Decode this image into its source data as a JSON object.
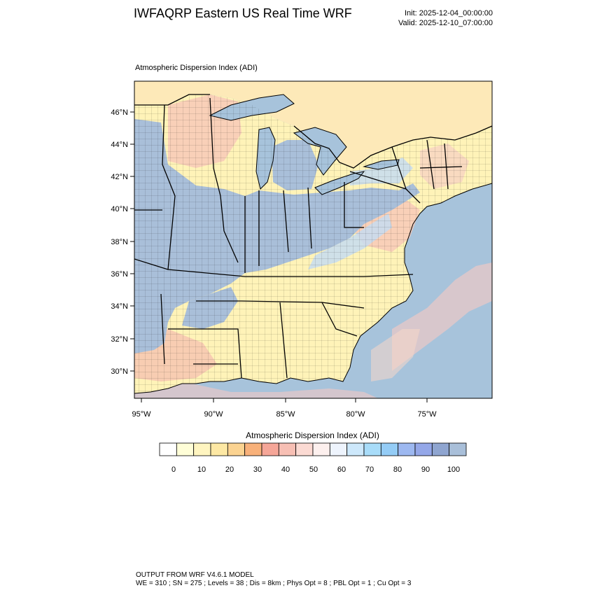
{
  "header": {
    "title": "IWFAQRP Eastern US Real Time WRF",
    "init": "Init: 2025-12-04_00:00:00",
    "valid": "Valid: 2025-12-10_07:00:00"
  },
  "panel": {
    "title": "Atmospheric Dispersion Index   (ADI)"
  },
  "map": {
    "lat_ticks": [
      "46°N",
      "44°N",
      "42°N",
      "40°N",
      "38°N",
      "36°N",
      "34°N",
      "32°N",
      "30°N"
    ],
    "lon_ticks": [
      "95°W",
      "90°W",
      "85°W",
      "80°W",
      "75°W"
    ],
    "colors": {
      "water": "#a7c3db",
      "high_adi": "#a9bfd9",
      "low_adi": "#fff3b8",
      "mid_adi": "#f8c9b7",
      "light_blue": "#c7dcf0",
      "canada": "#fde9b8"
    }
  },
  "colorbar": {
    "title": "Atmospheric Dispersion Index  (ADI)",
    "labels": [
      "0",
      "10",
      "20",
      "30",
      "40",
      "50",
      "60",
      "70",
      "80",
      "90",
      "100"
    ],
    "colors": [
      "#ffffff",
      "#fffed7",
      "#fff5c0",
      "#fde8a4",
      "#fbd391",
      "#f8b17a",
      "#f5a698",
      "#f7bfb4",
      "#fbdad3",
      "#fdf0ee",
      "#eef4fd",
      "#cde8fb",
      "#a8dcf9",
      "#94ccf6",
      "#9db8f0",
      "#94a7e8",
      "#8fa5d0",
      "#a9bfd9"
    ]
  },
  "footer": {
    "line1": "OUTPUT FROM WRF V4.6.1 MODEL",
    "line2": "WE = 310 ; SN = 275 ; Levels = 38 ; Dis = 8km ; Phys Opt = 8 ; PBL Opt = 1 ; Cu Opt = 3"
  }
}
